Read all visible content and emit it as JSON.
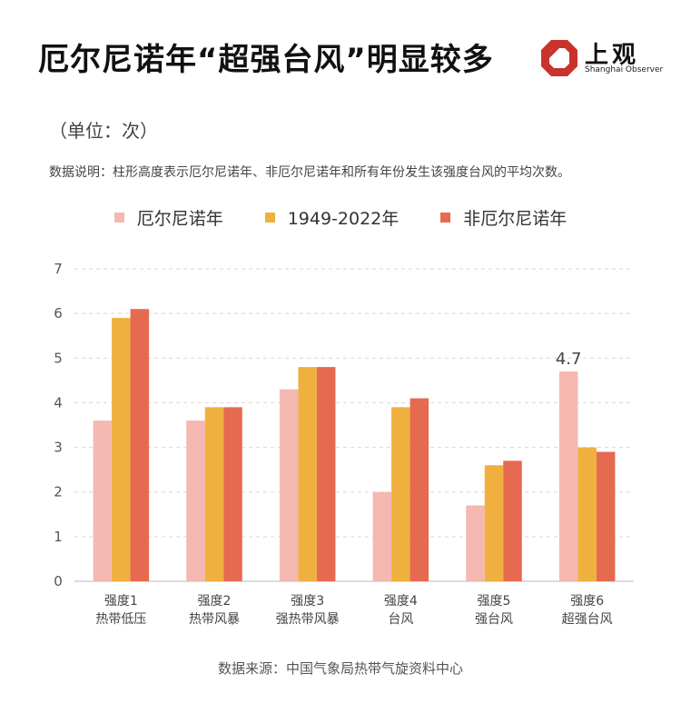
{
  "header": {
    "title": "厄尔尼诺年“超强台风”明显较多",
    "logo_text": "上观",
    "logo_sub": "Shanghai Observer"
  },
  "unit_label": "（单位：次）",
  "note": "数据说明：柱形高度表示厄尔尼诺年、非厄尔尼诺年和所有年份发生该强度台风的平均次数。",
  "source": "数据来源：中国气象局热带气旋资料中心",
  "colors": {
    "elnino": "#f4b8b0",
    "all": "#efb03f",
    "nonelnino": "#e56a50",
    "logo": "#c8332b"
  },
  "chart_data": {
    "type": "bar",
    "categories": [
      [
        "强度1",
        "热带低压"
      ],
      [
        "强度2",
        "热带风暴"
      ],
      [
        "强度3",
        "强热带风暴"
      ],
      [
        "强度4",
        "台风"
      ],
      [
        "强度5",
        "强台风"
      ],
      [
        "强度6",
        "超强台风"
      ]
    ],
    "series": [
      {
        "name": "厄尔尼诺年",
        "values": [
          3.6,
          3.6,
          4.3,
          2.0,
          1.7,
          4.7
        ]
      },
      {
        "name": "1949-2022年",
        "values": [
          5.9,
          3.9,
          4.8,
          3.9,
          2.6,
          3.0
        ]
      },
      {
        "name": "非厄尔尼诺年",
        "values": [
          6.1,
          3.9,
          4.8,
          4.1,
          2.7,
          2.9
        ]
      }
    ],
    "ylim": [
      0,
      7
    ],
    "yticks": [
      "0",
      "1",
      "2",
      "3",
      "4",
      "5",
      "6",
      "7"
    ],
    "grid": true,
    "legend_position": "top-center",
    "annotations": [
      {
        "series": 0,
        "category": 5,
        "text": "4.7"
      }
    ]
  }
}
